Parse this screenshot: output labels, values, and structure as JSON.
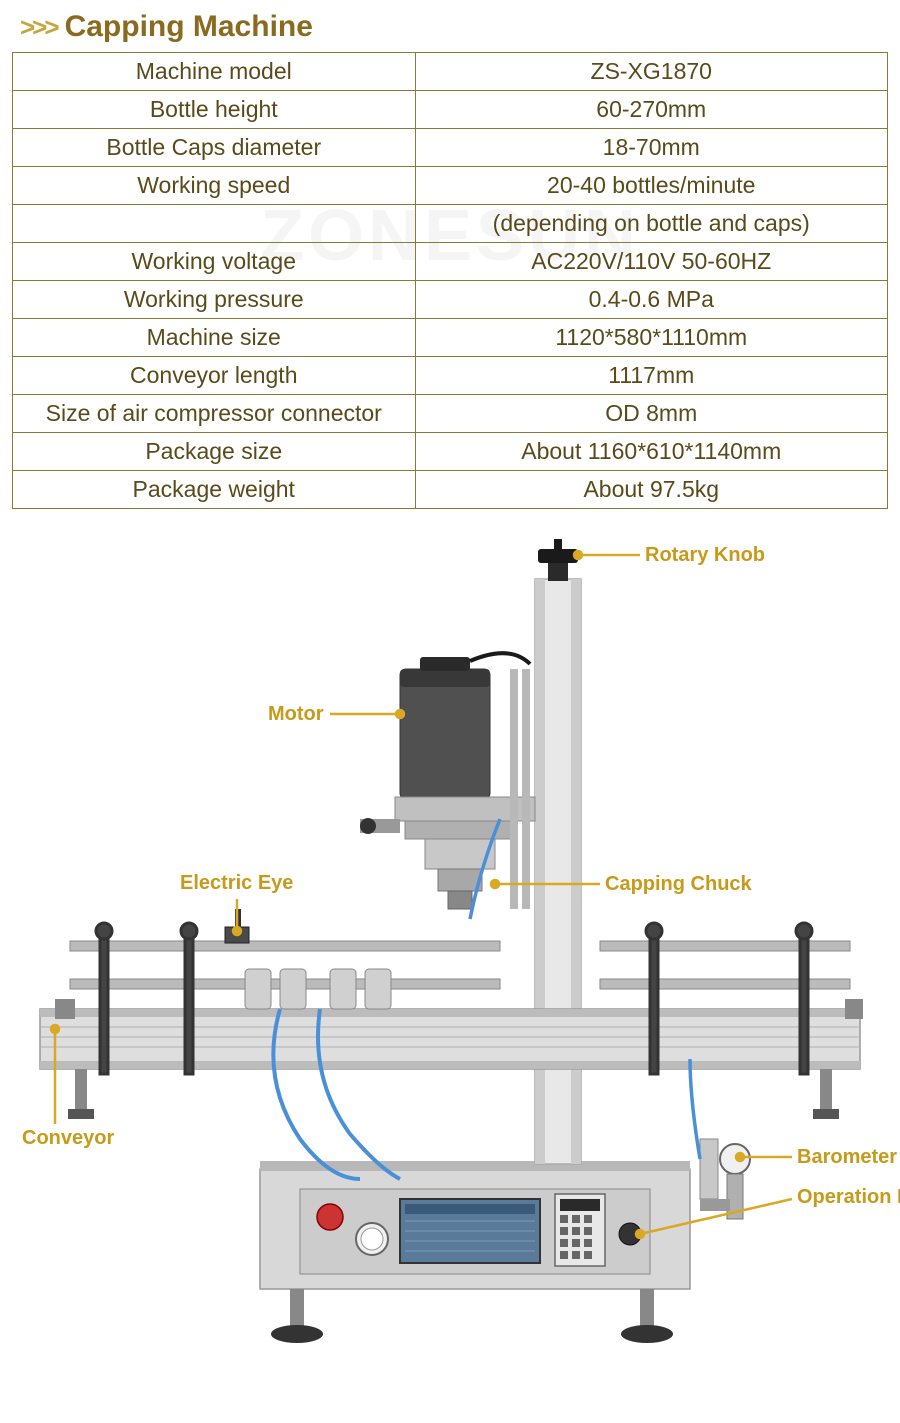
{
  "header": {
    "chevrons": ">>>",
    "title": "Capping Machine"
  },
  "watermark": "ZONESUN",
  "specs": {
    "rows": [
      {
        "label": "Machine model",
        "value": "ZS-XG1870"
      },
      {
        "label": "Bottle height",
        "value": "60-270mm"
      },
      {
        "label": "Bottle Caps diameter",
        "value": "18-70mm"
      },
      {
        "label": "Working speed",
        "value": "20-40 bottles/minute"
      },
      {
        "label": "",
        "value": "(depending on bottle and caps)"
      },
      {
        "label": "Working voltage",
        "value": "AC220V/110V 50-60HZ"
      },
      {
        "label": "Working pressure",
        "value": "0.4-0.6 MPa"
      },
      {
        "label": "Machine size",
        "value": "1120*580*1110mm"
      },
      {
        "label": "Conveyor length",
        "value": "1117mm"
      },
      {
        "label": "Size of air compressor connector",
        "value": "OD 8mm"
      },
      {
        "label": "Package size",
        "value": "About 1160*610*1140mm"
      },
      {
        "label": "Package weight",
        "value": "About 97.5kg"
      }
    ],
    "border_color": "#8a7a3a",
    "text_color": "#5a4a1a",
    "fontsize": 23
  },
  "diagram": {
    "labels": {
      "rotary_knob": "Rotary Knob",
      "motor": "Motor",
      "electric_eye": "Electric Eye",
      "capping_chuck": "Capping Chuck",
      "conveyor": "Conveyor",
      "barometer": "Barometer",
      "operation_panel": "Operation Panel"
    },
    "label_color": "#c79a1a",
    "leader_color": "#d9a825",
    "machine_colors": {
      "metal_light": "#e8e8e8",
      "metal_mid": "#c8c8c8",
      "metal_dark": "#888888",
      "dark_part": "#404040",
      "panel_screen": "#5a7a9a",
      "panel_dark": "#2a2a2a",
      "button_red": "#cc3333",
      "hose_blue": "#4a90d9",
      "foot": "#333333"
    }
  },
  "colors": {
    "title": "#8a6b1e",
    "chevron": "#c4a73f",
    "background": "#ffffff"
  }
}
